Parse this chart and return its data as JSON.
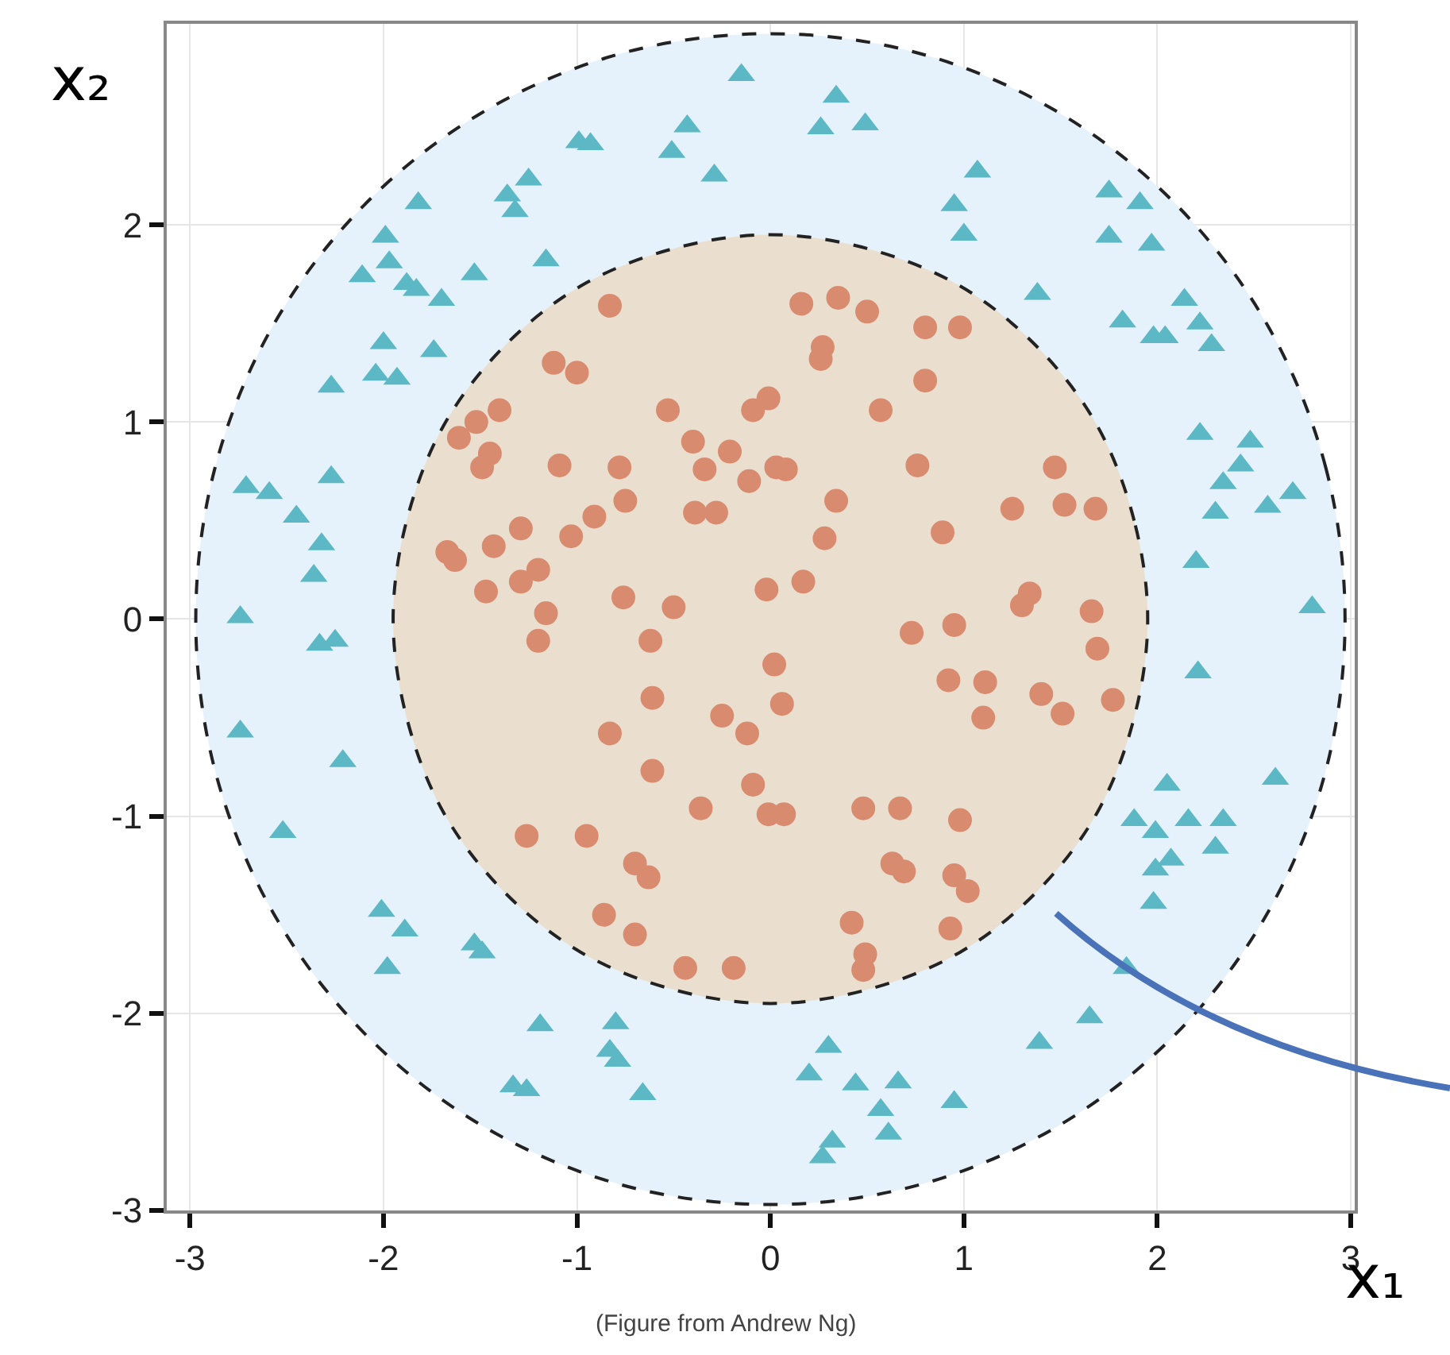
{
  "chart_data": {
    "type": "scatter",
    "xlabel": "x₁",
    "ylabel": "x₂",
    "annotations": [
      "(Figure from Andrew Ng)"
    ],
    "xlim": [
      -3.12,
      3.02
    ],
    "ylim": [
      -3.0,
      3.02
    ],
    "xticks": [
      -3,
      -2,
      -1,
      0,
      1,
      2,
      3
    ],
    "yticks": [
      -3,
      -2,
      -1,
      0,
      1,
      2
    ],
    "grid": true,
    "series": [
      {
        "type": "area",
        "color": "#e5f1fb",
        "line_style": "dashed",
        "x": [
          2.97,
          2.87,
          2.57,
          2.1,
          1.49,
          0.77,
          0,
          -0.77,
          -1.49,
          -2.1,
          -2.57,
          -2.87,
          -2.97,
          -2.87,
          -2.57,
          -2.1,
          -1.49,
          -0.77,
          0,
          0.77,
          1.49,
          2.1,
          2.57,
          2.87,
          2.97
        ],
        "values": [
          0,
          0.77,
          1.49,
          2.1,
          2.57,
          2.87,
          2.97,
          2.87,
          2.57,
          2.1,
          1.49,
          0.77,
          0,
          -0.77,
          -1.49,
          -2.1,
          -2.57,
          -2.87,
          -2.97,
          -2.87,
          -2.57,
          -2.1,
          -1.49,
          -0.77,
          0
        ]
      },
      {
        "type": "area",
        "color": "#eadfcf",
        "line_style": "dashed",
        "x": [
          1.95,
          1.88,
          1.69,
          1.38,
          0.98,
          0.5,
          0,
          -0.5,
          -0.98,
          -1.38,
          -1.69,
          -1.88,
          -1.95,
          -1.88,
          -1.69,
          -1.38,
          -0.98,
          -0.5,
          0,
          0.5,
          0.98,
          1.38,
          1.69,
          1.88,
          1.95
        ],
        "values": [
          0,
          0.5,
          0.98,
          1.38,
          1.69,
          1.88,
          1.95,
          1.88,
          1.69,
          1.38,
          0.98,
          0.5,
          0,
          -0.5,
          -0.98,
          -1.38,
          -1.69,
          -1.88,
          -1.95,
          -1.88,
          -1.69,
          -1.38,
          -0.98,
          -0.5,
          0
        ]
      },
      {
        "type": "scatter",
        "marker": "triangle",
        "color": "#5bb8c4",
        "x": [
          -0.15,
          -0.43,
          -0.51,
          -0.29,
          -0.99,
          -0.93,
          -1.25,
          -1.36,
          -1.32,
          -1.82,
          -1.99,
          -2.11,
          -1.97,
          -1.88,
          -1.83,
          -1.7,
          -1.53,
          -1.16,
          -2.0,
          -1.74,
          -2.04,
          -1.93,
          -2.27,
          -2.27,
          -2.71,
          -2.59,
          -2.45,
          -2.32,
          -2.36,
          -2.74,
          -2.33,
          -2.25,
          -2.74,
          -2.21,
          -2.52,
          -2.01,
          -1.89,
          -1.98,
          -1.53,
          -1.49,
          -1.19,
          -0.8,
          -0.83,
          -0.79,
          -1.33,
          -1.26,
          -0.66,
          0.34,
          0.26,
          0.49,
          1.07,
          0.95,
          1.0,
          1.75,
          1.91,
          1.75,
          1.97,
          1.38,
          1.82,
          2.14,
          1.98,
          2.04,
          2.22,
          2.28,
          2.22,
          2.48,
          2.43,
          2.34,
          2.3,
          2.57,
          2.7,
          2.2,
          2.8,
          2.21,
          2.05,
          2.61,
          1.88,
          1.99,
          2.16,
          2.34,
          2.3,
          2.07,
          1.99,
          1.98,
          1.84,
          1.65,
          1.39,
          0.3,
          0.2,
          0.44,
          0.66,
          0.57,
          0.61,
          0.32,
          0.27,
          0.95
        ],
        "values": [
          2.76,
          2.5,
          2.37,
          2.25,
          2.42,
          2.41,
          2.23,
          2.15,
          2.07,
          2.11,
          1.94,
          1.74,
          1.81,
          1.7,
          1.67,
          1.62,
          1.75,
          1.82,
          1.4,
          1.36,
          1.24,
          1.22,
          1.18,
          0.72,
          0.67,
          0.64,
          0.52,
          0.38,
          0.22,
          0.01,
          -0.13,
          -0.11,
          -0.57,
          -0.72,
          -1.08,
          -1.48,
          -1.58,
          -1.77,
          -1.65,
          -1.69,
          -2.06,
          -2.05,
          -2.19,
          -2.24,
          -2.37,
          -2.39,
          -2.41,
          2.65,
          2.49,
          2.51,
          2.27,
          2.1,
          1.95,
          2.17,
          2.11,
          1.94,
          1.9,
          1.65,
          1.51,
          1.62,
          1.43,
          1.43,
          1.5,
          1.39,
          0.94,
          0.9,
          0.78,
          0.69,
          0.54,
          0.57,
          0.64,
          0.29,
          0.06,
          -0.27,
          -0.84,
          -0.81,
          -1.02,
          -1.08,
          -1.02,
          -1.02,
          -1.16,
          -1.22,
          -1.27,
          -1.44,
          -1.77,
          -2.02,
          -2.15,
          -2.17,
          -2.31,
          -2.36,
          -2.35,
          -2.49,
          -2.61,
          -2.65,
          -2.73,
          -2.45
        ]
      },
      {
        "type": "scatter",
        "marker": "circle",
        "color": "#d98b6f",
        "x": [
          -0.83,
          -1.12,
          -1.0,
          -1.4,
          -1.52,
          -1.61,
          -1.45,
          -1.49,
          -1.09,
          -0.78,
          -0.53,
          -0.4,
          -0.21,
          -0.34,
          -0.11,
          -0.09,
          -0.01,
          -0.39,
          -0.28,
          -0.75,
          -0.91,
          -1.03,
          -1.29,
          -1.43,
          -1.67,
          -1.63,
          -1.2,
          -1.29,
          -1.47,
          -0.76,
          -0.5,
          -1.16,
          -0.02,
          0.03,
          -1.2,
          -0.62,
          0.02,
          -0.61,
          -0.83,
          -0.25,
          -0.12,
          -0.61,
          -0.09,
          -0.36,
          -0.01,
          -1.26,
          -0.95,
          -0.7,
          -0.63,
          -0.86,
          -0.7,
          -0.44,
          -0.19,
          0.16,
          0.35,
          0.5,
          0.8,
          0.98,
          0.27,
          0.26,
          0.8,
          0.57,
          0.08,
          0.76,
          1.47,
          0.34,
          1.25,
          1.52,
          1.68,
          0.28,
          0.89,
          0.17,
          1.34,
          1.3,
          1.66,
          0.73,
          0.95,
          0.06,
          0.92,
          1.11,
          1.1,
          1.4,
          1.51,
          1.77,
          1.69,
          0.07,
          0.48,
          0.67,
          0.98,
          0.63,
          0.69,
          0.95,
          1.02,
          0.42,
          0.93,
          0.49,
          0.48
        ],
        "values": [
          1.59,
          1.3,
          1.25,
          1.06,
          1.0,
          0.92,
          0.84,
          0.77,
          0.78,
          0.77,
          1.06,
          0.9,
          0.85,
          0.76,
          0.7,
          1.06,
          1.12,
          0.54,
          0.54,
          0.6,
          0.52,
          0.42,
          0.46,
          0.37,
          0.34,
          0.3,
          0.25,
          0.19,
          0.14,
          0.11,
          0.06,
          0.03,
          0.15,
          0.77,
          -0.11,
          -0.11,
          -0.23,
          -0.4,
          -0.58,
          -0.49,
          -0.58,
          -0.77,
          -0.84,
          -0.96,
          -0.99,
          -1.1,
          -1.1,
          -1.24,
          -1.31,
          -1.5,
          -1.6,
          -1.77,
          -1.77,
          1.6,
          1.63,
          1.56,
          1.48,
          1.48,
          1.38,
          1.32,
          1.21,
          1.06,
          0.76,
          0.78,
          0.77,
          0.6,
          0.56,
          0.58,
          0.56,
          0.41,
          0.44,
          0.19,
          0.13,
          0.07,
          0.04,
          -0.07,
          -0.03,
          -0.43,
          -0.31,
          -0.32,
          -0.5,
          -0.38,
          -0.48,
          -0.41,
          -0.15,
          -0.99,
          -0.96,
          -0.96,
          -1.02,
          -1.24,
          -1.28,
          -1.3,
          -1.38,
          -1.54,
          -1.57,
          -1.7,
          -1.78
        ]
      }
    ]
  }
}
